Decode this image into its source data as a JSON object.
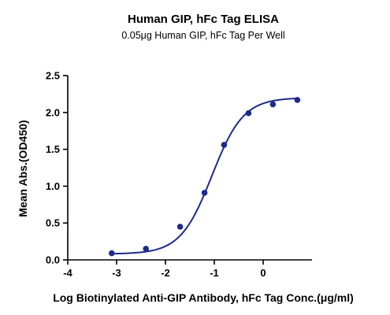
{
  "chart_data": {
    "type": "line",
    "title": "Human GIP, hFc Tag ELISA",
    "subtitle": "0.05μg Human GIP, hFc Tag Per Well",
    "xlabel": "Log Biotinylated Anti-GIP Antibody, hFc Tag Conc.(μg/ml)",
    "ylabel": "Mean Abs.(OD450)",
    "xlim": [
      -4,
      1
    ],
    "ylim": [
      0,
      2.5
    ],
    "xticks": [
      -4,
      -3,
      -2,
      -1,
      0
    ],
    "yticks": [
      0.0,
      0.5,
      1.0,
      1.5,
      2.0,
      2.5
    ],
    "xtick_labels": [
      "-4",
      "-3",
      "-2",
      "-1",
      "0"
    ],
    "ytick_labels": [
      "0.0",
      "0.5",
      "1.0",
      "1.5",
      "2.0",
      "2.5"
    ],
    "grid": false,
    "series": [
      {
        "x": [
          -3.1,
          -2.4,
          -1.7,
          -1.2,
          -0.8,
          -0.3,
          0.2,
          0.7
        ],
        "y": [
          0.09,
          0.15,
          0.45,
          0.91,
          1.56,
          1.99,
          2.11,
          2.17
        ]
      }
    ],
    "fit": {
      "model": "4PL",
      "bottom": 0.08,
      "top": 2.2,
      "ec50_log": -1.05,
      "hill": 1.35
    },
    "colors": {
      "series": "#1f2a8c",
      "axis": "#000000"
    }
  }
}
